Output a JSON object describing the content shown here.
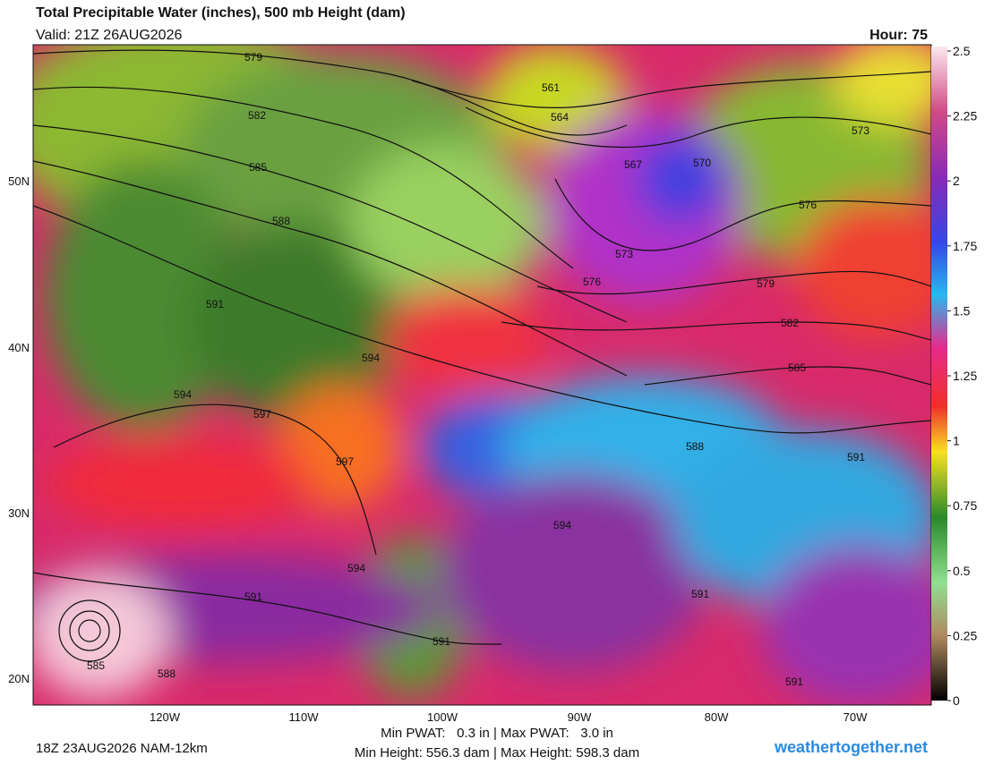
{
  "header": {
    "title": "Total Precipitable Water (inches), 500 mb Height (dam)",
    "valid": "Valid: 21Z 26AUG2026",
    "hour": "Hour: 75"
  },
  "map": {
    "lat_labels": [
      "50N",
      "40N",
      "30N",
      "20N"
    ],
    "lon_labels": [
      "120W",
      "110W",
      "100W",
      "90W",
      "80W",
      "70W"
    ],
    "contour_labels": [
      579,
      582,
      585,
      588,
      591,
      594,
      597,
      594,
      597,
      594,
      591,
      585,
      588,
      591,
      561,
      564,
      567,
      570,
      573,
      576,
      573,
      576,
      579,
      582,
      585,
      588,
      591,
      594,
      591,
      591
    ]
  },
  "colorbar": {
    "lim": [
      0,
      2.5
    ],
    "ticks": [
      0,
      0.25,
      0.5,
      0.75,
      1,
      1.25,
      1.5,
      1.75,
      2,
      2.25,
      2.5
    ]
  },
  "footer": {
    "run": "18Z 23AUG2026 NAM-12km",
    "pwat": "Min PWAT:   0.3 in | Max PWAT:   3.0 in",
    "height": "Min Height: 556.3 dam | Max Height: 598.3 dam",
    "site": "weathertogether.net"
  }
}
